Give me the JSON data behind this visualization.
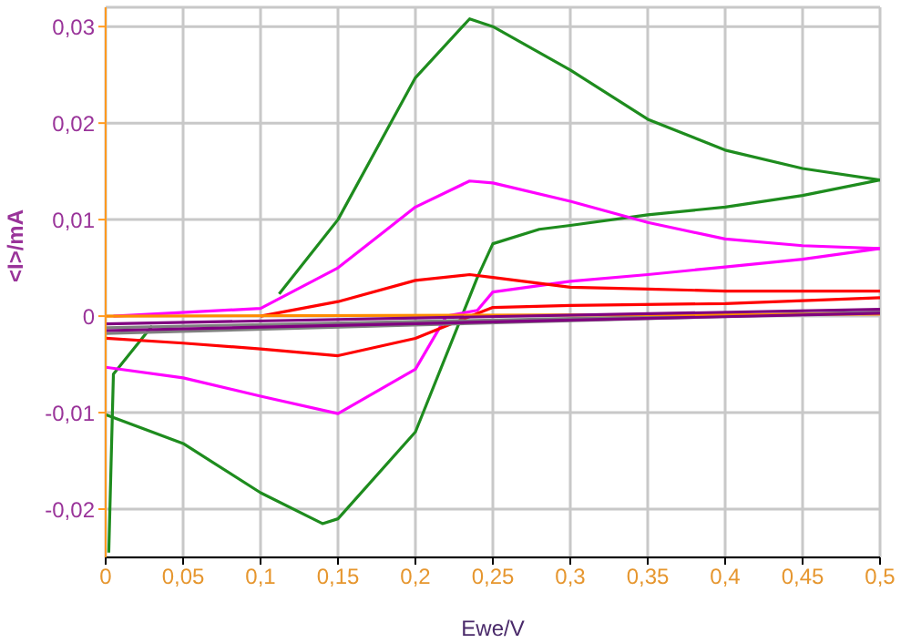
{
  "chart_data": {
    "type": "line",
    "xlabel": "Ewe/V",
    "ylabel": "<I>/mA",
    "xlim": [
      0,
      0.5
    ],
    "ylim": [
      -0.025,
      0.032
    ],
    "xticks": [
      0,
      {
        "value": 0.05,
        "label": "0,05"
      },
      {
        "value": 0.1,
        "label": "0,1"
      },
      {
        "value": 0.15,
        "label": "0,15"
      },
      {
        "value": 0.2,
        "label": "0,2"
      },
      {
        "value": 0.25,
        "label": "0,25"
      },
      {
        "value": 0.3,
        "label": "0,3"
      },
      {
        "value": 0.35,
        "label": "0,35"
      },
      {
        "value": 0.4,
        "label": "0,4"
      },
      {
        "value": 0.45,
        "label": "0,45"
      },
      {
        "value": 0.5,
        "label": "0,5"
      }
    ],
    "yticks": [
      {
        "value": -0.02,
        "label": "-0,02"
      },
      {
        "value": -0.01,
        "label": "-0,01"
      },
      0,
      {
        "value": 0.01,
        "label": "0,01"
      },
      {
        "value": 0.02,
        "label": "0,02"
      },
      {
        "value": 0.03,
        "label": "0,03"
      }
    ],
    "grid": true,
    "marker": "none",
    "line_style": "solid",
    "series": [
      {
        "color": "#1e8c1e",
        "x": [
          0.002,
          0.005,
          0.03
        ],
        "values": [
          -0.0245,
          -0.006,
          -0.001
        ]
      },
      {
        "color": "#1e8c1e",
        "x": [
          0.112,
          0.15,
          0.2,
          0.235,
          0.25,
          0.3,
          0.35,
          0.4,
          0.45,
          0.5
        ],
        "values": [
          0.0023,
          0.01,
          0.0247,
          0.0308,
          0.03,
          0.0255,
          0.0204,
          0.0172,
          0.0153,
          0.0141
        ]
      },
      {
        "color": "#1e8c1e",
        "x": [
          0.5,
          0.45,
          0.4,
          0.35,
          0.3,
          0.28,
          0.25,
          0.24,
          0.23,
          0.2,
          0.15,
          0.14,
          0.1,
          0.05,
          0
        ],
        "values": [
          0.0141,
          0.0125,
          0.0113,
          0.0105,
          0.0094,
          0.009,
          0.0075,
          0.004,
          0,
          -0.012,
          -0.021,
          -0.0215,
          -0.0183,
          -0.0132,
          -0.0102
        ]
      },
      {
        "color": "#ff00ff",
        "x": [
          0.005,
          0.1,
          0.15,
          0.2,
          0.235,
          0.25,
          0.3,
          0.35,
          0.4,
          0.45,
          0.5
        ],
        "values": [
          0,
          0.0008,
          0.005,
          0.0113,
          0.014,
          0.0138,
          0.0119,
          0.0097,
          0.008,
          0.0073,
          0.007
        ]
      },
      {
        "color": "#ff00ff",
        "x": [
          0.5,
          0.45,
          0.4,
          0.35,
          0.3,
          0.25,
          0.24,
          0.22,
          0.2,
          0.15,
          0.1,
          0.05,
          0
        ],
        "values": [
          0.007,
          0.0059,
          0.0051,
          0.0043,
          0.0036,
          0.0025,
          0.0006,
          0,
          -0.0055,
          -0.0101,
          -0.0083,
          -0.0064,
          -0.0053
        ]
      },
      {
        "color": "#ff0000",
        "x": [
          0.1,
          0.15,
          0.2,
          0.235,
          0.25,
          0.3,
          0.35,
          0.4,
          0.5
        ],
        "values": [
          0,
          0.0015,
          0.0037,
          0.0043,
          0.004,
          0.003,
          0.0028,
          0.0026,
          0.0026
        ]
      },
      {
        "color": "#ff0000",
        "x": [
          0.5,
          0.4,
          0.3,
          0.25,
          0.22,
          0.2,
          0.15,
          0.1,
          0.05,
          0
        ],
        "values": [
          0.0019,
          0.0013,
          0.0011,
          0.0009,
          -0.001,
          -0.0023,
          -0.0041,
          -0.0034,
          -0.0028,
          -0.0023
        ]
      },
      {
        "color": "#808080",
        "x": [
          0,
          0.5
        ],
        "values": [
          -0.0012,
          0.0004
        ]
      },
      {
        "color": "#808080",
        "x": [
          0.5,
          0
        ],
        "values": [
          0.0004,
          -0.0018
        ]
      },
      {
        "color": "#ff8c00",
        "x": [
          0,
          0.5
        ],
        "values": [
          0,
          0.0002
        ]
      },
      {
        "color": "#800080",
        "x": [
          0,
          0.5
        ],
        "values": [
          -0.0008,
          0.0007
        ]
      },
      {
        "color": "#800080",
        "x": [
          0.5,
          0
        ],
        "values": [
          0.0003,
          -0.0015
        ]
      }
    ]
  }
}
